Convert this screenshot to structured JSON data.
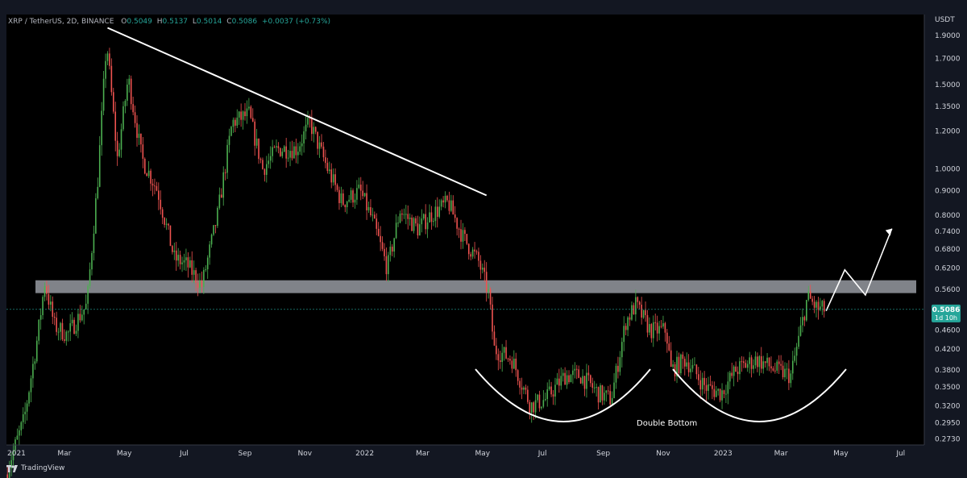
{
  "header": {
    "symbol": "XRP / TetherUS, 2D, BINANCE",
    "o_label": "O",
    "o_value": "0.5049",
    "h_label": "H",
    "h_value": "0.5137",
    "l_label": "L",
    "l_value": "0.5014",
    "c_label": "C",
    "c_value": "0.5086",
    "change": "+0.0037 (+0.73%)"
  },
  "brand": "TradingView",
  "price_tag": {
    "value": "0.5086",
    "countdown": "1d 10h"
  },
  "annotations": {
    "pattern_label": "Double Bottom"
  },
  "colors": {
    "up": "#26a69a",
    "down": "#ef5350",
    "up_bright": "#4caf50",
    "background": "#000000",
    "zone": "#b2b5be",
    "drawing": "#ffffff",
    "price_tag": "#26a69a"
  },
  "chart_data": {
    "type": "candlestick",
    "title": "XRP / TetherUS, 2D, BINANCE",
    "yunit": "USDT",
    "yscale": "log",
    "ylim": [
      0.265,
      2.1
    ],
    "xlim": [
      "2021-01-01",
      "2023-07-25"
    ],
    "x_ticks": [
      "2021",
      "Mar",
      "May",
      "Jul",
      "Sep",
      "Nov",
      "2022",
      "Mar",
      "May",
      "Jul",
      "Sep",
      "Nov",
      "2023",
      "Mar",
      "May",
      "Jul"
    ],
    "x_tick_dates": [
      "2021-01-01",
      "2021-03-01",
      "2021-05-01",
      "2021-07-01",
      "2021-09-01",
      "2021-11-01",
      "2022-01-01",
      "2022-03-01",
      "2022-05-01",
      "2022-07-01",
      "2022-09-01",
      "2022-11-01",
      "2023-01-01",
      "2023-03-01",
      "2023-05-01",
      "2023-07-01"
    ],
    "y_ticks": [
      "1.9000",
      "1.7000",
      "1.5000",
      "1.3500",
      "1.2000",
      "1.0000",
      "0.9000",
      "0.8000",
      "0.7400",
      "0.6800",
      "0.6200",
      "0.5600",
      "0.4600",
      "0.4200",
      "0.3800",
      "0.3500",
      "0.3200",
      "0.2950",
      "0.2730"
    ],
    "price_path": [
      [
        "2021-01-01",
        0.23
      ],
      [
        "2021-01-20",
        0.3
      ],
      [
        "2021-02-03",
        0.45
      ],
      [
        "2021-02-10",
        0.58
      ],
      [
        "2021-02-20",
        0.47
      ],
      [
        "2021-03-05",
        0.45
      ],
      [
        "2021-03-25",
        0.52
      ],
      [
        "2021-04-05",
        0.95
      ],
      [
        "2021-04-14",
        1.85
      ],
      [
        "2021-04-25",
        1.05
      ],
      [
        "2021-05-06",
        1.55
      ],
      [
        "2021-05-20",
        1.05
      ],
      [
        "2021-06-05",
        0.9
      ],
      [
        "2021-06-22",
        0.65
      ],
      [
        "2021-07-05",
        0.63
      ],
      [
        "2021-07-20",
        0.57
      ],
      [
        "2021-08-05",
        0.8
      ],
      [
        "2021-08-20",
        1.25
      ],
      [
        "2021-09-06",
        1.3
      ],
      [
        "2021-09-20",
        1.0
      ],
      [
        "2021-10-05",
        1.1
      ],
      [
        "2021-10-25",
        1.1
      ],
      [
        "2021-11-07",
        1.25
      ],
      [
        "2021-11-25",
        1.0
      ],
      [
        "2021-12-10",
        0.85
      ],
      [
        "2021-12-28",
        0.9
      ],
      [
        "2022-01-10",
        0.78
      ],
      [
        "2022-01-25",
        0.62
      ],
      [
        "2022-02-07",
        0.82
      ],
      [
        "2022-02-25",
        0.75
      ],
      [
        "2022-03-10",
        0.8
      ],
      [
        "2022-03-28",
        0.85
      ],
      [
        "2022-04-12",
        0.72
      ],
      [
        "2022-04-28",
        0.64
      ],
      [
        "2022-05-08",
        0.55
      ],
      [
        "2022-05-14",
        0.42
      ],
      [
        "2022-06-01",
        0.4
      ],
      [
        "2022-06-20",
        0.32
      ],
      [
        "2022-07-05",
        0.33
      ],
      [
        "2022-07-25",
        0.37
      ],
      [
        "2022-08-10",
        0.37
      ],
      [
        "2022-08-28",
        0.34
      ],
      [
        "2022-09-10",
        0.33
      ],
      [
        "2022-09-25",
        0.48
      ],
      [
        "2022-10-05",
        0.52
      ],
      [
        "2022-10-20",
        0.46
      ],
      [
        "2022-11-05",
        0.46
      ],
      [
        "2022-11-10",
        0.38
      ],
      [
        "2022-11-25",
        0.4
      ],
      [
        "2022-12-15",
        0.35
      ],
      [
        "2022-12-31",
        0.34
      ],
      [
        "2023-01-15",
        0.38
      ],
      [
        "2023-02-05",
        0.4
      ],
      [
        "2023-02-25",
        0.38
      ],
      [
        "2023-03-12",
        0.37
      ],
      [
        "2023-03-21",
        0.45
      ],
      [
        "2023-03-29",
        0.54
      ],
      [
        "2023-04-08",
        0.51
      ],
      [
        "2023-04-13",
        0.5086
      ]
    ],
    "resistance_zone": [
      0.55,
      0.585
    ],
    "trendline": [
      [
        "2021-04-14",
        1.97
      ],
      [
        "2022-05-05",
        0.88
      ]
    ],
    "projection_path": [
      [
        "2023-04-16",
        0.505
      ],
      [
        "2023-05-05",
        0.615
      ],
      [
        "2023-05-26",
        0.545
      ],
      [
        "2023-06-22",
        0.75
      ]
    ],
    "last_price": 0.5086
  }
}
